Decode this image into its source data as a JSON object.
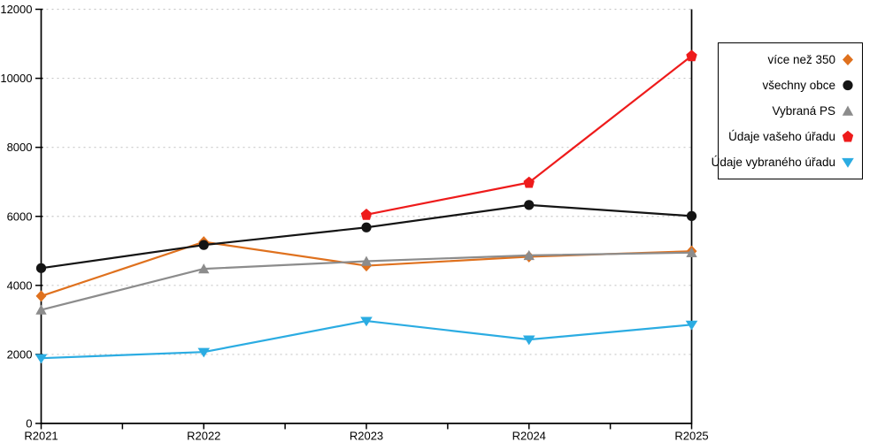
{
  "chart_data": {
    "type": "line",
    "title": "",
    "xlabel": "",
    "ylabel": "",
    "categories": [
      "R2021",
      "R2022",
      "R2023",
      "R2024",
      "R2025"
    ],
    "ylim": [
      0,
      12000
    ],
    "yticks": [
      0,
      2000,
      4000,
      6000,
      8000,
      10000,
      12000
    ],
    "grid": "horizontal-dotted",
    "legend_position": "outside-right-boxed",
    "series": [
      {
        "name": "více než 350",
        "marker": "diamond",
        "color": "#DF711E",
        "values": [
          3690,
          5260,
          4570,
          4830,
          4990
        ]
      },
      {
        "name": "všechny obce",
        "marker": "circle",
        "color": "#141414",
        "values": [
          4500,
          5170,
          5680,
          6330,
          6010
        ]
      },
      {
        "name": "Vybraná PS",
        "marker": "triangle-up",
        "color": "#8C8C8C",
        "values": [
          3290,
          4480,
          4700,
          4870,
          4950
        ]
      },
      {
        "name": "Údaje vašeho úřadu",
        "marker": "pentagon",
        "color": "#EE1B1B",
        "values": [
          null,
          null,
          6050,
          6980,
          10650
        ]
      },
      {
        "name": "Údaje vybraného úřadu",
        "marker": "triangle-down",
        "color": "#2BACE2",
        "values": [
          1890,
          2070,
          2970,
          2430,
          2860
        ]
      }
    ]
  },
  "style": {
    "axis_color": "#000000",
    "grid_color": "#C8C8C8",
    "tick_label_color": "#000000",
    "line_width": 2.2
  }
}
